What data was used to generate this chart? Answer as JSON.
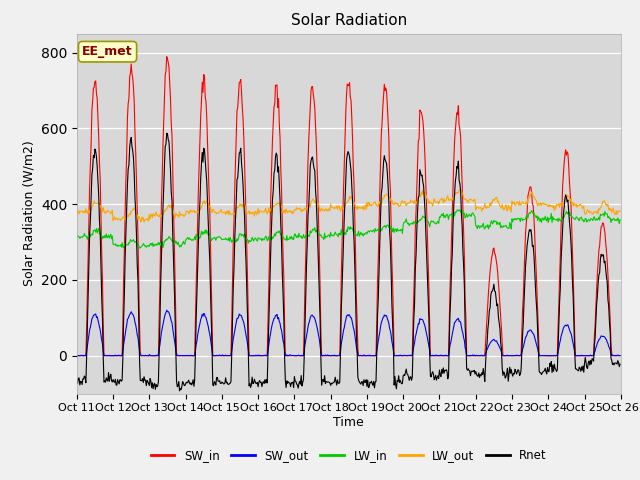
{
  "title": "Solar Radiation",
  "ylabel": "Solar Radiation (W/m2)",
  "xlabel": "Time",
  "annotation": "EE_met",
  "ylim": [
    -100,
    850
  ],
  "xtick_labels": [
    "Oct 11",
    "Oct 12",
    "Oct 13",
    "Oct 14",
    "Oct 15",
    "Oct 16",
    "Oct 17",
    "Oct 18",
    "Oct 19",
    "Oct 20",
    "Oct 21",
    "Oct 22",
    "Oct 23",
    "Oct 24",
    "Oct 25",
    "Oct 26"
  ],
  "series_colors": {
    "SW_in": "#ff0000",
    "SW_out": "#0000ff",
    "LW_in": "#00cc00",
    "LW_out": "#ffa500",
    "Rnet": "#000000"
  },
  "n_days": 15,
  "pts_per_day": 48,
  "background_color": "#e8e8e8",
  "plot_bg_color": "#d8d8d8",
  "grid_color": "#ffffff",
  "title_fontsize": 11,
  "label_fontsize": 9,
  "tick_fontsize": 8,
  "day_peaks_SW_in": [
    730,
    760,
    790,
    730,
    715,
    710,
    710,
    725,
    710,
    640,
    645,
    280,
    450,
    545,
    350
  ],
  "LW_in_base": [
    315,
    290,
    295,
    310,
    305,
    310,
    315,
    320,
    330,
    350,
    370,
    340,
    360,
    360,
    360
  ],
  "LW_out_base": [
    380,
    360,
    370,
    380,
    375,
    380,
    385,
    390,
    400,
    405,
    410,
    390,
    400,
    395,
    380
  ],
  "night_rnet": -75
}
